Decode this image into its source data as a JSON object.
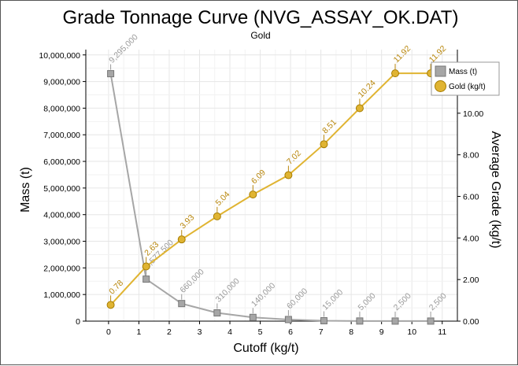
{
  "chart_data": {
    "type": "line",
    "title": "Grade Tonnage Curve (NVG_ASSAY_OK.DAT)",
    "subtitle": "Gold",
    "xlabel": "Cutoff (kg/t)",
    "ylabel_left": "Mass (t)",
    "ylabel_right": "Average Grade (kg/t)",
    "xlim": [
      -0.75,
      11.5
    ],
    "ylim_left": [
      0,
      10200000
    ],
    "ylim_right": [
      0,
      13.06
    ],
    "x_ticks": [
      "0",
      "1",
      "2",
      "3",
      "4",
      "5",
      "6",
      "7",
      "8",
      "9",
      "10",
      "11"
    ],
    "y_left_ticks": [
      "0",
      "1,000,000",
      "2,000,000",
      "3,000,000",
      "4,000,000",
      "5,000,000",
      "6,000,000",
      "7,000,000",
      "8,000,000",
      "9,000,000",
      "10,000,000"
    ],
    "y_right_ticks": [
      "0.00",
      "2.00",
      "4.00",
      "6.00",
      "8.00",
      "10.00"
    ],
    "grid": true,
    "legend_position": "top-right",
    "x": [
      0.07,
      1.24,
      2.41,
      3.58,
      4.76,
      5.93,
      7.1,
      8.28,
      9.45,
      10.62
    ],
    "series": [
      {
        "name": "Mass (t)",
        "axis": "left",
        "color": "#a6a6a6",
        "marker": "square",
        "values": [
          9295000,
          1577500,
          660000,
          310000,
          140000,
          60000,
          15000,
          5000,
          2500,
          2500
        ],
        "labels": [
          "9,295,000",
          "1,577,500",
          "660,000",
          "310,000",
          "140,000",
          "60,000",
          "15,000",
          "5,000",
          "2,500",
          "2,500"
        ]
      },
      {
        "name": "Gold (kg/t)",
        "axis": "right",
        "color": "#e0b432",
        "marker": "circle",
        "values": [
          0.78,
          2.63,
          3.93,
          5.04,
          6.09,
          7.02,
          8.51,
          10.24,
          11.92,
          11.92
        ],
        "labels": [
          "0.78",
          "2.63",
          "3.93",
          "5.04",
          "6.09",
          "7.02",
          "8.51",
          "10.24",
          "11.92",
          "11.92"
        ]
      }
    ]
  }
}
